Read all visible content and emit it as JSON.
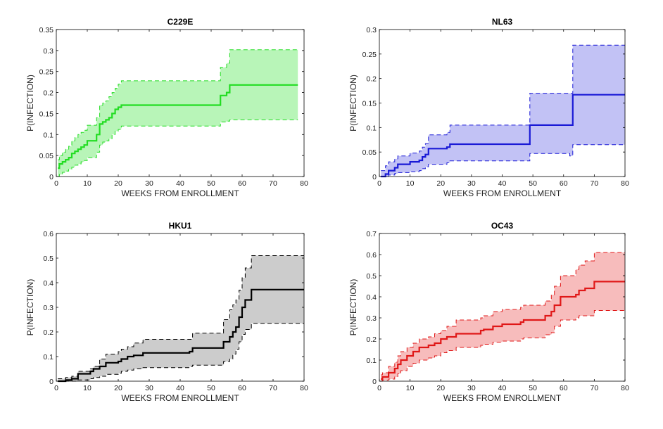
{
  "chart_data": [
    {
      "type": "line",
      "title": "C229E",
      "xlabel": "WEEKS FROM ENROLLMENT",
      "ylabel": "P(INFECTION)",
      "xlim": [
        0,
        80
      ],
      "ylim": [
        0,
        0.35
      ],
      "xticks": [
        "0",
        "10",
        "20",
        "30",
        "40",
        "50",
        "60",
        "70",
        "80"
      ],
      "yticks": [
        "0",
        "0.05",
        "0.1",
        "0.15",
        "0.2",
        "0.25",
        "0.3",
        "0.35"
      ],
      "color": "#22dd22",
      "fill": "#b8f5b8",
      "x": [
        0.5,
        1,
        2,
        3,
        4,
        5,
        6,
        7,
        8,
        9,
        10,
        12,
        13,
        14,
        15,
        16,
        17,
        18,
        19,
        20,
        21,
        52,
        53,
        55,
        56,
        78
      ],
      "estimate": [
        0.02,
        0.03,
        0.035,
        0.04,
        0.045,
        0.055,
        0.06,
        0.065,
        0.07,
        0.075,
        0.085,
        0.085,
        0.1,
        0.125,
        0.13,
        0.135,
        0.14,
        0.15,
        0.16,
        0.165,
        0.17,
        0.17,
        0.193,
        0.2,
        0.218,
        0.218
      ],
      "lower": [
        0.0,
        0.005,
        0.01,
        0.013,
        0.017,
        0.022,
        0.027,
        0.03,
        0.035,
        0.038,
        0.045,
        0.045,
        0.058,
        0.075,
        0.082,
        0.085,
        0.09,
        0.1,
        0.108,
        0.112,
        0.12,
        0.12,
        0.13,
        0.132,
        0.135,
        0.135
      ],
      "upper": [
        0.04,
        0.05,
        0.058,
        0.065,
        0.072,
        0.085,
        0.093,
        0.1,
        0.105,
        0.11,
        0.122,
        0.122,
        0.14,
        0.17,
        0.175,
        0.18,
        0.19,
        0.2,
        0.21,
        0.22,
        0.228,
        0.228,
        0.26,
        0.27,
        0.302,
        0.302
      ]
    },
    {
      "type": "line",
      "title": "NL63",
      "xlabel": "WEEKS FROM ENROLLMENT",
      "ylabel": "P(INFECTION)",
      "xlim": [
        0,
        80
      ],
      "ylim": [
        0,
        0.3
      ],
      "xticks": [
        "0",
        "10",
        "20",
        "30",
        "40",
        "50",
        "60",
        "70",
        "80"
      ],
      "yticks": [
        "0",
        "0.05",
        "0.1",
        "0.15",
        "0.2",
        "0.25",
        "0.3"
      ],
      "color": "#1a1ad6",
      "fill": "#c2c2f5",
      "x": [
        0.5,
        2,
        3,
        5,
        6,
        8,
        10,
        11,
        13,
        14,
        15,
        16,
        22,
        23,
        48,
        49,
        62,
        63,
        80
      ],
      "estimate": [
        0.0,
        0.005,
        0.012,
        0.018,
        0.025,
        0.025,
        0.03,
        0.03,
        0.033,
        0.04,
        0.045,
        0.057,
        0.06,
        0.066,
        0.066,
        0.105,
        0.105,
        0.167,
        0.167
      ],
      "lower": [
        0.0,
        0.0,
        0.003,
        0.006,
        0.008,
        0.008,
        0.01,
        0.01,
        0.012,
        0.016,
        0.02,
        0.025,
        0.028,
        0.032,
        0.032,
        0.047,
        0.042,
        0.065,
        0.065
      ],
      "upper": [
        0.012,
        0.022,
        0.03,
        0.036,
        0.042,
        0.042,
        0.048,
        0.048,
        0.052,
        0.06,
        0.067,
        0.085,
        0.09,
        0.105,
        0.105,
        0.17,
        0.17,
        0.268,
        0.268
      ]
    },
    {
      "type": "line",
      "title": "HKU1",
      "xlabel": "WEEKS FROM ENROLLMENT",
      "ylabel": "P(INFECTION)",
      "xlim": [
        0,
        80
      ],
      "ylim": [
        0,
        0.6
      ],
      "xticks": [
        "0",
        "10",
        "20",
        "30",
        "40",
        "50",
        "60",
        "70",
        "80"
      ],
      "yticks": [
        "0",
        "0.1",
        "0.2",
        "0.3",
        "0.4",
        "0.5",
        "0.6"
      ],
      "color": "#000000",
      "fill": "#cccccc",
      "x": [
        0.5,
        3,
        5,
        7,
        11,
        12,
        14,
        16,
        20,
        21,
        23,
        25,
        28,
        43,
        44,
        52,
        54,
        56,
        57,
        58,
        59,
        60,
        61,
        63,
        80
      ],
      "estimate": [
        0.0,
        0.005,
        0.01,
        0.03,
        0.04,
        0.05,
        0.06,
        0.075,
        0.08,
        0.09,
        0.1,
        0.105,
        0.115,
        0.12,
        0.135,
        0.135,
        0.16,
        0.18,
        0.2,
        0.22,
        0.26,
        0.3,
        0.33,
        0.372,
        0.372
      ],
      "lower": [
        0.0,
        0.0,
        0.0,
        0.005,
        0.01,
        0.015,
        0.02,
        0.028,
        0.032,
        0.04,
        0.045,
        0.05,
        0.055,
        0.06,
        0.065,
        0.065,
        0.08,
        0.09,
        0.11,
        0.13,
        0.16,
        0.19,
        0.21,
        0.235,
        0.235
      ],
      "upper": [
        0.01,
        0.015,
        0.02,
        0.04,
        0.05,
        0.06,
        0.09,
        0.11,
        0.12,
        0.13,
        0.14,
        0.155,
        0.17,
        0.17,
        0.195,
        0.195,
        0.25,
        0.29,
        0.31,
        0.33,
        0.37,
        0.42,
        0.46,
        0.51,
        0.51
      ]
    },
    {
      "type": "line",
      "title": "OC43",
      "xlabel": "WEEKS FROM ENROLLMENT",
      "ylabel": "P(INFECTION)",
      "xlim": [
        0,
        80
      ],
      "ylim": [
        0,
        0.7
      ],
      "xticks": [
        "0",
        "10",
        "20",
        "30",
        "40",
        "50",
        "60",
        "70",
        "80"
      ],
      "yticks": [
        "0",
        "0.1",
        "0.2",
        "0.3",
        "0.4",
        "0.5",
        "0.6",
        "0.7"
      ],
      "color": "#e01818",
      "fill": "#f7bcbc",
      "x": [
        0.5,
        1,
        3,
        5,
        6,
        7,
        9,
        11,
        13,
        16,
        18,
        20,
        22,
        25,
        33,
        34,
        37,
        40,
        46,
        47,
        54,
        56,
        57,
        59,
        64,
        65,
        67,
        70,
        80
      ],
      "estimate": [
        0.01,
        0.02,
        0.04,
        0.06,
        0.08,
        0.1,
        0.12,
        0.14,
        0.16,
        0.17,
        0.18,
        0.2,
        0.21,
        0.225,
        0.24,
        0.245,
        0.26,
        0.27,
        0.28,
        0.29,
        0.31,
        0.33,
        0.36,
        0.4,
        0.41,
        0.43,
        0.44,
        0.472,
        0.472
      ],
      "lower": [
        0.0,
        0.005,
        0.01,
        0.02,
        0.035,
        0.05,
        0.07,
        0.085,
        0.1,
        0.11,
        0.12,
        0.135,
        0.145,
        0.16,
        0.17,
        0.175,
        0.185,
        0.19,
        0.2,
        0.205,
        0.22,
        0.23,
        0.26,
        0.29,
        0.3,
        0.31,
        0.31,
        0.335,
        0.335
      ],
      "upper": [
        0.03,
        0.04,
        0.07,
        0.09,
        0.12,
        0.14,
        0.16,
        0.18,
        0.2,
        0.21,
        0.225,
        0.24,
        0.26,
        0.29,
        0.3,
        0.31,
        0.33,
        0.34,
        0.35,
        0.36,
        0.38,
        0.41,
        0.45,
        0.5,
        0.53,
        0.55,
        0.57,
        0.61,
        0.61
      ]
    }
  ]
}
